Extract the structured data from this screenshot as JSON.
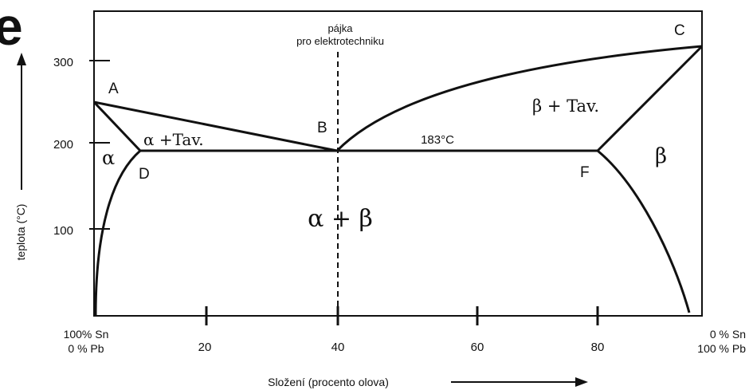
{
  "header_fragment": "e",
  "solder": {
    "line1": "pájka",
    "line2": "pro elektrotechniku"
  },
  "points": {
    "A": "A",
    "B": "B",
    "C": "C",
    "D": "D",
    "F": "F"
  },
  "eutectic_temp": "183°C",
  "regions": {
    "alpha": "α",
    "alpha_liquid": "α +Tav.",
    "beta": "β",
    "beta_liquid": "β + Tav.",
    "alpha_beta": "α + β"
  },
  "y_axis": {
    "label": "teplota (°C)",
    "ticks": [
      "300",
      "200",
      "100"
    ]
  },
  "x_axis": {
    "label": "Složení (procento olova)",
    "ticks": [
      "20",
      "40",
      "60",
      "80"
    ],
    "left_line1": "100% Sn",
    "left_line2": "0 % Pb",
    "right_line1": "0 % Sn",
    "right_line2": "100 % Pb"
  }
}
